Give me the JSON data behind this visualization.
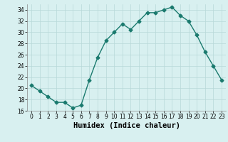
{
  "x": [
    0,
    1,
    2,
    3,
    4,
    5,
    6,
    7,
    8,
    9,
    10,
    11,
    12,
    13,
    14,
    15,
    16,
    17,
    18,
    19,
    20,
    21,
    22,
    23
  ],
  "y": [
    20.5,
    19.5,
    18.5,
    17.5,
    17.5,
    16.5,
    17.0,
    21.5,
    25.5,
    28.5,
    30.0,
    31.5,
    30.5,
    32.0,
    33.5,
    33.5,
    34.0,
    34.5,
    33.0,
    32.0,
    29.5,
    26.5,
    24.0,
    21.5
  ],
  "line_color": "#1a7a6e",
  "marker": "D",
  "markersize": 2.5,
  "linewidth": 1.0,
  "bg_color": "#d8f0f0",
  "grid_color": "#b8d8d8",
  "xlabel": "Humidex (Indice chaleur)",
  "xlim": [
    -0.5,
    23.5
  ],
  "ylim": [
    16,
    35
  ],
  "yticks": [
    16,
    18,
    20,
    22,
    24,
    26,
    28,
    30,
    32,
    34
  ],
  "xticks": [
    0,
    1,
    2,
    3,
    4,
    5,
    6,
    7,
    8,
    9,
    10,
    11,
    12,
    13,
    14,
    15,
    16,
    17,
    18,
    19,
    20,
    21,
    22,
    23
  ],
  "tick_fontsize": 5.5,
  "xlabel_fontsize": 7.5
}
